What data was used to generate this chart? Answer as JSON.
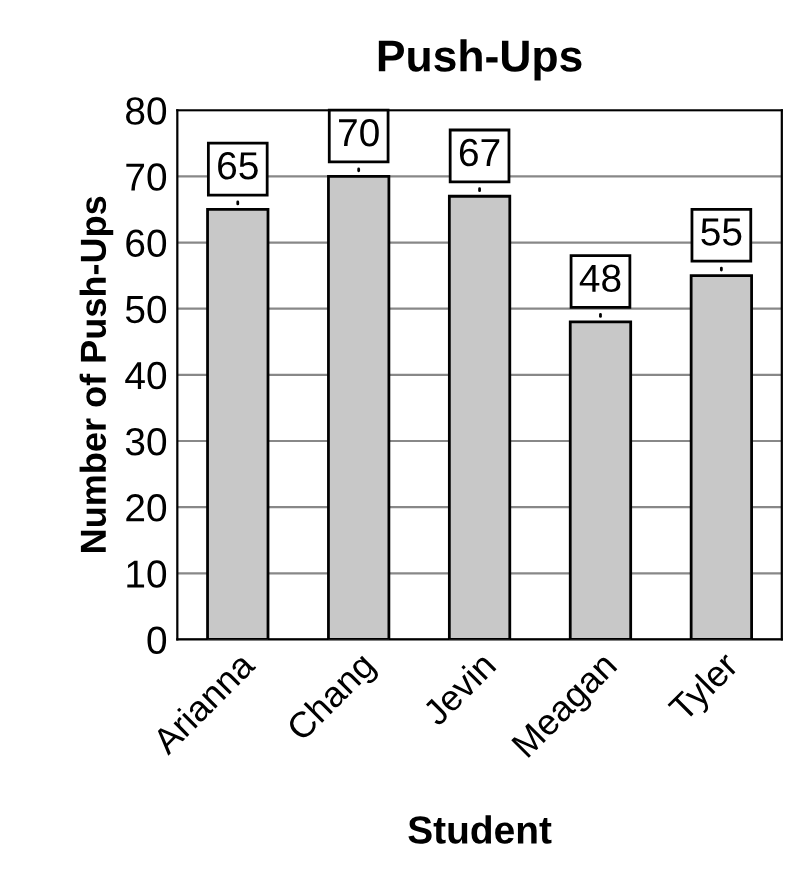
{
  "chart_data": {
    "type": "bar",
    "title": "Push-Ups",
    "xlabel": "Student",
    "ylabel": "Number of Push-Ups",
    "categories": [
      "Arianna",
      "Chang",
      "Jevin",
      "Meagan",
      "Tyler"
    ],
    "values": [
      65,
      70,
      67,
      48,
      55
    ],
    "color": "#c8c8c8",
    "ylim": [
      0,
      80
    ],
    "yticks": [
      0,
      10,
      20,
      30,
      40,
      50,
      60,
      70,
      80
    ],
    "grid": "y",
    "data_labels": true
  }
}
